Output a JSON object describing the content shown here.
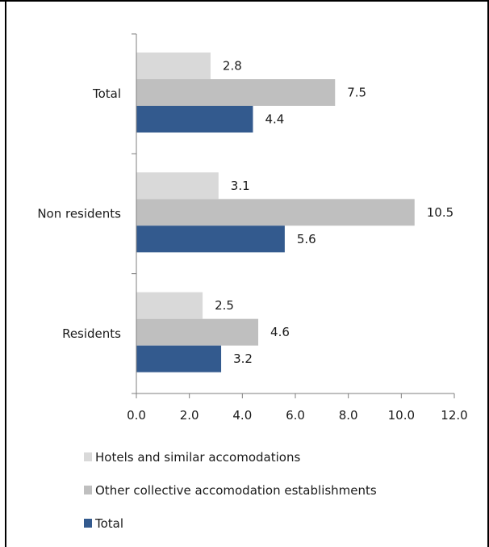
{
  "chart_data": {
    "type": "bar",
    "orientation": "horizontal",
    "categories": [
      "Total",
      "Non residents",
      "Residents"
    ],
    "series": [
      {
        "name": "Hotels and similar accomodations",
        "values": [
          2.8,
          3.1,
          2.5
        ],
        "color": "#d9d9d9"
      },
      {
        "name": "Other collective accomodation establishments",
        "values": [
          7.5,
          10.5,
          4.6
        ],
        "color": "#bfbfbf"
      },
      {
        "name": "Total",
        "values": [
          4.4,
          5.6,
          3.2
        ],
        "color": "#335a8e"
      }
    ],
    "xlim": [
      0,
      12
    ],
    "x_ticks": [
      "0.0",
      "2.0",
      "4.0",
      "6.0",
      "8.0",
      "10.0",
      "12.0"
    ],
    "data_labels": [
      [
        "2.8",
        "7.5",
        "4.4"
      ],
      [
        "3.1",
        "10.5",
        "5.6"
      ],
      [
        "2.5",
        "4.6",
        "3.2"
      ]
    ],
    "legend_position": "bottom-left",
    "grid": false
  }
}
